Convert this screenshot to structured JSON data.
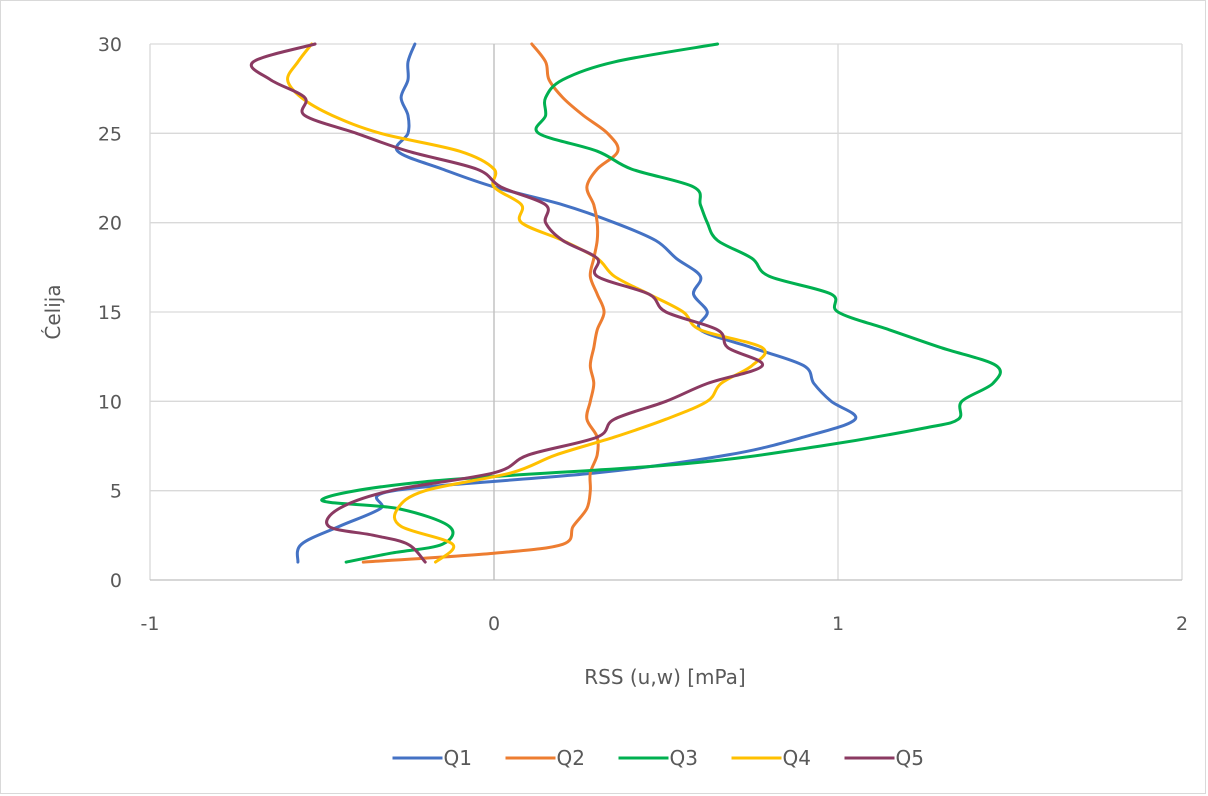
{
  "chart_data": {
    "type": "line",
    "title": "",
    "xlabel": "RSS (u,w) [mPa]",
    "ylabel": "Ćelija",
    "xlim": [
      -1,
      2
    ],
    "ylim": [
      0,
      30
    ],
    "x_ticks": [
      "-1",
      "0",
      "1",
      "2"
    ],
    "y_ticks": [
      "0",
      "5",
      "10",
      "15",
      "20",
      "25",
      "30"
    ],
    "grid": true,
    "legend_position": "bottom",
    "series": [
      {
        "name": "Q1",
        "color": "#4472C4",
        "points": [
          [
            -0.57,
            1
          ],
          [
            -0.56,
            2
          ],
          [
            -0.45,
            3
          ],
          [
            -0.33,
            4
          ],
          [
            -0.29,
            5
          ],
          [
            0.3,
            6
          ],
          [
            0.68,
            7
          ],
          [
            0.9,
            8
          ],
          [
            1.05,
            9
          ],
          [
            0.98,
            10
          ],
          [
            0.93,
            11
          ],
          [
            0.9,
            12
          ],
          [
            0.75,
            13
          ],
          [
            0.6,
            14
          ],
          [
            0.62,
            15
          ],
          [
            0.58,
            16
          ],
          [
            0.6,
            17
          ],
          [
            0.53,
            18
          ],
          [
            0.47,
            19
          ],
          [
            0.35,
            20
          ],
          [
            0.2,
            21
          ],
          [
            0.0,
            22
          ],
          [
            -0.15,
            23
          ],
          [
            -0.28,
            24
          ],
          [
            -0.25,
            25
          ],
          [
            -0.25,
            26
          ],
          [
            -0.27,
            27
          ],
          [
            -0.25,
            28
          ],
          [
            -0.25,
            29
          ],
          [
            -0.23,
            30
          ]
        ]
      },
      {
        "name": "Q2",
        "color": "#ED7D31",
        "points": [
          [
            -0.38,
            1
          ],
          [
            0.0,
            1.5
          ],
          [
            0.2,
            2
          ],
          [
            0.23,
            3
          ],
          [
            0.27,
            4
          ],
          [
            0.28,
            5
          ],
          [
            0.28,
            6
          ],
          [
            0.3,
            7
          ],
          [
            0.3,
            8
          ],
          [
            0.27,
            9
          ],
          [
            0.28,
            10
          ],
          [
            0.29,
            11
          ],
          [
            0.28,
            12
          ],
          [
            0.29,
            13
          ],
          [
            0.3,
            14
          ],
          [
            0.32,
            15
          ],
          [
            0.3,
            16
          ],
          [
            0.28,
            17
          ],
          [
            0.29,
            18
          ],
          [
            0.3,
            19
          ],
          [
            0.3,
            20
          ],
          [
            0.29,
            21
          ],
          [
            0.27,
            22
          ],
          [
            0.3,
            23
          ],
          [
            0.36,
            24
          ],
          [
            0.33,
            25
          ],
          [
            0.26,
            26
          ],
          [
            0.2,
            27
          ],
          [
            0.16,
            28
          ],
          [
            0.15,
            29
          ],
          [
            0.11,
            30
          ]
        ]
      },
      {
        "name": "Q3",
        "color": "#00B050",
        "points": [
          [
            -0.43,
            1
          ],
          [
            -0.3,
            1.5
          ],
          [
            -0.15,
            2
          ],
          [
            -0.13,
            3
          ],
          [
            -0.28,
            4
          ],
          [
            -0.5,
            4.5
          ],
          [
            -0.2,
            5.5
          ],
          [
            0.55,
            6.5
          ],
          [
            0.95,
            7.5
          ],
          [
            1.25,
            8.5
          ],
          [
            1.35,
            9
          ],
          [
            1.36,
            10
          ],
          [
            1.45,
            11
          ],
          [
            1.46,
            12
          ],
          [
            1.3,
            13
          ],
          [
            1.15,
            14
          ],
          [
            1.0,
            15
          ],
          [
            0.98,
            16
          ],
          [
            0.8,
            17
          ],
          [
            0.75,
            18
          ],
          [
            0.65,
            19
          ],
          [
            0.62,
            20
          ],
          [
            0.6,
            21
          ],
          [
            0.58,
            22
          ],
          [
            0.4,
            23
          ],
          [
            0.3,
            24
          ],
          [
            0.13,
            25
          ],
          [
            0.15,
            26
          ],
          [
            0.15,
            27
          ],
          [
            0.2,
            28
          ],
          [
            0.35,
            29
          ],
          [
            0.65,
            30
          ]
        ]
      },
      {
        "name": "Q4",
        "color": "#FFC000",
        "points": [
          [
            -0.17,
            1
          ],
          [
            -0.12,
            2
          ],
          [
            -0.27,
            3
          ],
          [
            -0.28,
            4
          ],
          [
            -0.2,
            5
          ],
          [
            0.05,
            6
          ],
          [
            0.18,
            7
          ],
          [
            0.35,
            8
          ],
          [
            0.5,
            9
          ],
          [
            0.62,
            10
          ],
          [
            0.66,
            11
          ],
          [
            0.75,
            12
          ],
          [
            0.78,
            13
          ],
          [
            0.6,
            14
          ],
          [
            0.55,
            15
          ],
          [
            0.45,
            16
          ],
          [
            0.35,
            17
          ],
          [
            0.3,
            18
          ],
          [
            0.2,
            19
          ],
          [
            0.08,
            20
          ],
          [
            0.08,
            21
          ],
          [
            0.0,
            22
          ],
          [
            0.0,
            23
          ],
          [
            -0.1,
            24
          ],
          [
            -0.33,
            25
          ],
          [
            -0.47,
            26
          ],
          [
            -0.56,
            27
          ],
          [
            -0.6,
            28
          ],
          [
            -0.57,
            29
          ],
          [
            -0.53,
            30
          ]
        ]
      },
      {
        "name": "Q5",
        "color": "#8B3A62",
        "points": [
          [
            -0.2,
            1
          ],
          [
            -0.25,
            2
          ],
          [
            -0.35,
            2.5
          ],
          [
            -0.48,
            3
          ],
          [
            -0.45,
            4
          ],
          [
            -0.3,
            5
          ],
          [
            0.0,
            6
          ],
          [
            0.1,
            7
          ],
          [
            0.3,
            8
          ],
          [
            0.35,
            9
          ],
          [
            0.5,
            10
          ],
          [
            0.62,
            11
          ],
          [
            0.78,
            12
          ],
          [
            0.68,
            13
          ],
          [
            0.65,
            14
          ],
          [
            0.5,
            15
          ],
          [
            0.45,
            16
          ],
          [
            0.3,
            17
          ],
          [
            0.3,
            18
          ],
          [
            0.2,
            19
          ],
          [
            0.15,
            20
          ],
          [
            0.15,
            21
          ],
          [
            0.02,
            22
          ],
          [
            -0.05,
            23
          ],
          [
            -0.25,
            24
          ],
          [
            -0.4,
            25
          ],
          [
            -0.55,
            26
          ],
          [
            -0.55,
            27
          ],
          [
            -0.65,
            28
          ],
          [
            -0.7,
            29
          ],
          [
            -0.52,
            30
          ]
        ]
      }
    ]
  }
}
